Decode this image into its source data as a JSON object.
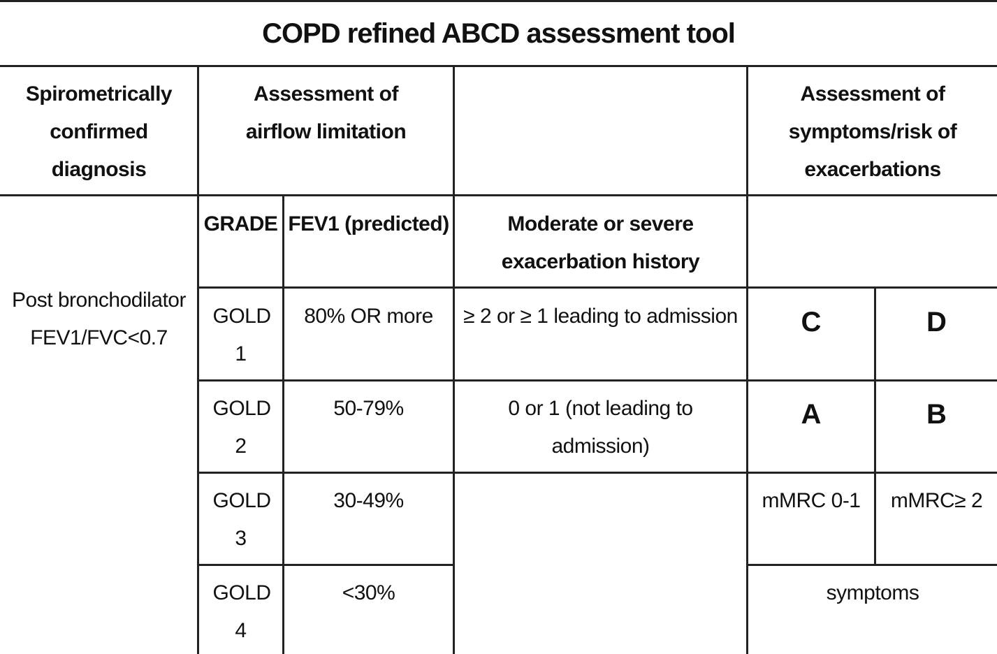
{
  "title": "COPD refined ABCD assessment tool",
  "headers": {
    "diagnosis": "Spirometrically confirmed diagnosis",
    "airflow": "Assessment of airflow limitation",
    "exacerbation_blank": "",
    "symptoms_risk": "Assessment of symptoms/risk of exacerbations"
  },
  "subheaders": {
    "grade": "GRADE",
    "fev1": "FEV1 (predicted)",
    "exacerbation_history": "Moderate or severe exacerbation history"
  },
  "diagnosis_text": "Post bronchodilator FEV1/FVC<0.7",
  "grades": [
    {
      "grade": "GOLD 1",
      "fev1": "80% OR more"
    },
    {
      "grade": "GOLD 2",
      "fev1": "50-79%"
    },
    {
      "grade": "GOLD 3",
      "fev1": "30-49%"
    },
    {
      "grade": "GOLD 4",
      "fev1": "<30%"
    }
  ],
  "exacerbation_rows": [
    "≥ 2 or ≥ 1 leading to admission",
    "0 or 1 (not leading to admission)"
  ],
  "groups": {
    "top_left": "C",
    "top_right": "D",
    "bottom_left": "A",
    "bottom_right": "B"
  },
  "mmrc": {
    "left": "mMRC 0-1",
    "right": "mMRC≥ 2"
  },
  "symptoms_label": "symptoms"
}
